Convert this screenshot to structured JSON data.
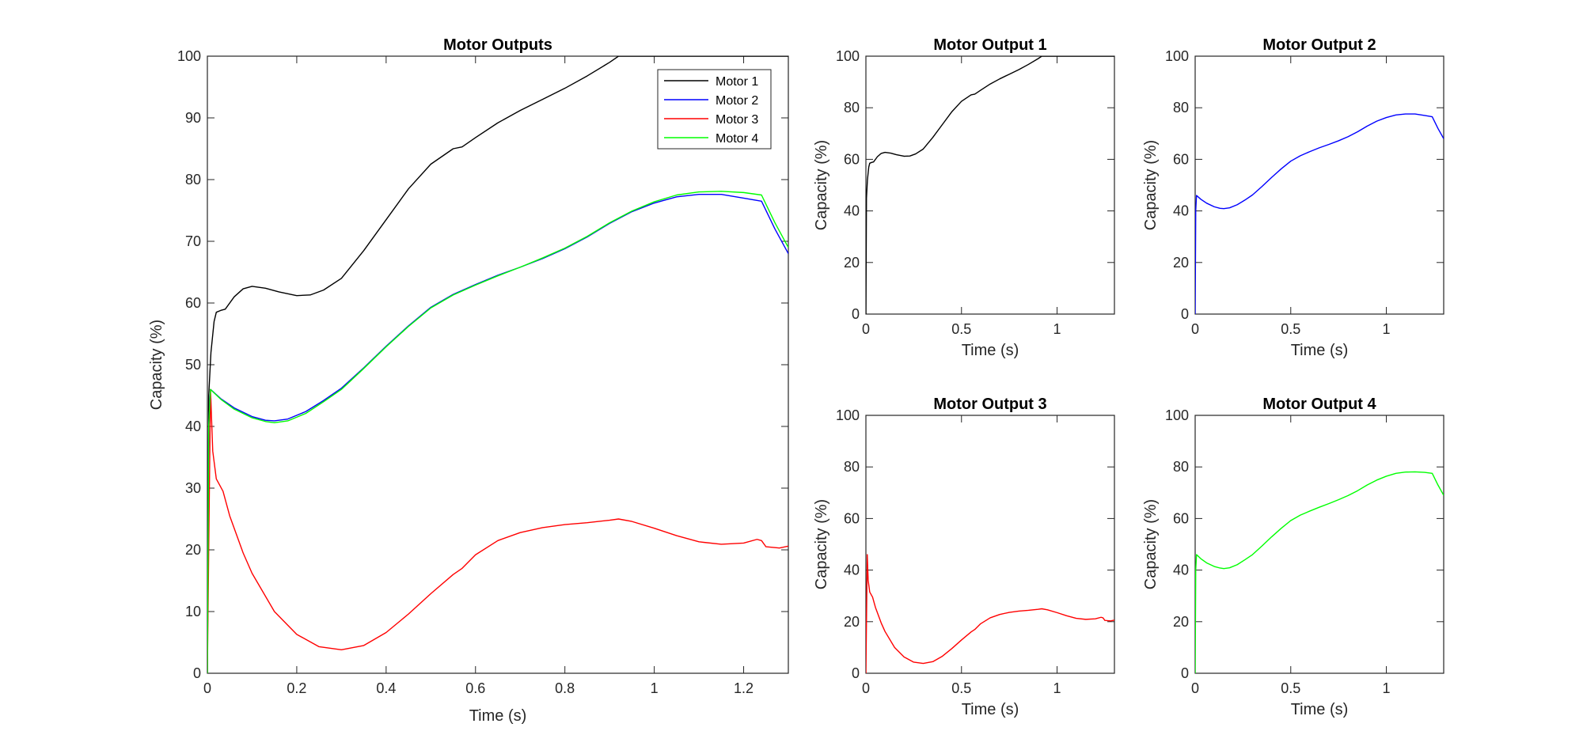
{
  "chart_data": [
    {
      "type": "line",
      "title": "Motor Outputs",
      "xlabel": "Time (s)",
      "ylabel": "Capacity (%)",
      "xlim": [
        0,
        1.3
      ],
      "ylim": [
        0,
        100
      ],
      "xticks": [
        0,
        0.2,
        0.4,
        0.6,
        0.8,
        1,
        1.2
      ],
      "xtick_labels": [
        "0",
        "0.2",
        "0.4",
        "0.6",
        "0.8",
        "1",
        "1.2"
      ],
      "yticks": [
        0,
        10,
        20,
        30,
        40,
        50,
        60,
        70,
        80,
        90,
        100
      ],
      "ytick_labels": [
        "0",
        "10",
        "20",
        "30",
        "40",
        "50",
        "60",
        "70",
        "80",
        "90",
        "100"
      ],
      "legend": "top-right",
      "grid": false,
      "series": [
        {
          "name": "Motor 1",
          "color": "#000000",
          "x": [
            0,
            0.003,
            0.008,
            0.015,
            0.02,
            0.03,
            0.04,
            0.06,
            0.08,
            0.1,
            0.13,
            0.16,
            0.2,
            0.23,
            0.26,
            0.3,
            0.35,
            0.4,
            0.45,
            0.5,
            0.55,
            0.57,
            0.6,
            0.65,
            0.7,
            0.75,
            0.8,
            0.85,
            0.9,
            0.92,
            1.0,
            1.1,
            1.2,
            1.3
          ],
          "y": [
            0,
            45,
            52,
            57,
            58.5,
            58.8,
            59,
            61,
            62.3,
            62.7,
            62.4,
            61.8,
            61.2,
            61.3,
            62.1,
            64,
            68.5,
            73.5,
            78.5,
            82.5,
            85,
            85.3,
            86.8,
            89.2,
            91.2,
            93,
            94.8,
            96.8,
            99,
            100,
            100,
            100,
            100,
            100
          ]
        },
        {
          "name": "Motor 2",
          "color": "#0000ff",
          "x": [
            0,
            0.003,
            0.007,
            0.03,
            0.06,
            0.1,
            0.13,
            0.15,
            0.18,
            0.22,
            0.26,
            0.3,
            0.35,
            0.4,
            0.45,
            0.5,
            0.55,
            0.6,
            0.65,
            0.7,
            0.75,
            0.8,
            0.85,
            0.9,
            0.95,
            1.0,
            1.05,
            1.1,
            1.15,
            1.2,
            1.24,
            1.27,
            1.3
          ],
          "y": [
            0,
            40,
            46,
            44.5,
            43,
            41.6,
            41,
            40.9,
            41.2,
            42.4,
            44.2,
            46.2,
            49.5,
            53,
            56.3,
            59.3,
            61.4,
            63,
            64.5,
            65.8,
            67.2,
            68.8,
            70.7,
            72.9,
            74.8,
            76.2,
            77.2,
            77.6,
            77.6,
            77,
            76.5,
            72,
            68
          ]
        },
        {
          "name": "Motor 3",
          "color": "#ff0000",
          "x": [
            0,
            0.003,
            0.007,
            0.012,
            0.02,
            0.035,
            0.05,
            0.08,
            0.1,
            0.15,
            0.2,
            0.25,
            0.3,
            0.35,
            0.4,
            0.45,
            0.5,
            0.55,
            0.57,
            0.6,
            0.65,
            0.7,
            0.75,
            0.8,
            0.85,
            0.9,
            0.92,
            0.95,
            1.0,
            1.05,
            1.1,
            1.15,
            1.2,
            1.23,
            1.24,
            1.25,
            1.28,
            1.3
          ],
          "y": [
            0,
            20,
            46,
            36,
            31.5,
            29.5,
            25.5,
            19.5,
            16.2,
            10,
            6.3,
            4.3,
            3.8,
            4.5,
            6.6,
            9.6,
            12.9,
            16,
            17,
            19.2,
            21.5,
            22.8,
            23.6,
            24.1,
            24.4,
            24.8,
            25,
            24.6,
            23.5,
            22.3,
            21.3,
            20.9,
            21.1,
            21.7,
            21.5,
            20.5,
            20.3,
            20.6
          ]
        },
        {
          "name": "Motor 4",
          "color": "#00ff00",
          "x": [
            0,
            0.003,
            0.007,
            0.03,
            0.06,
            0.1,
            0.13,
            0.15,
            0.18,
            0.22,
            0.26,
            0.3,
            0.35,
            0.4,
            0.45,
            0.5,
            0.55,
            0.6,
            0.65,
            0.7,
            0.75,
            0.8,
            0.85,
            0.9,
            0.95,
            1.0,
            1.05,
            1.1,
            1.15,
            1.2,
            1.24,
            1.27,
            1.3
          ],
          "y": [
            0,
            40,
            46,
            44.4,
            42.8,
            41.4,
            40.8,
            40.6,
            40.9,
            42.1,
            44,
            46,
            49.4,
            52.9,
            56.2,
            59.2,
            61.3,
            62.9,
            64.4,
            65.8,
            67.3,
            68.9,
            70.8,
            73,
            74.9,
            76.4,
            77.5,
            78,
            78.1,
            77.9,
            77.5,
            73,
            69
          ]
        }
      ]
    },
    {
      "type": "line",
      "title": "Motor Output 1",
      "xlabel": "Time (s)",
      "ylabel": "Capacity (%)",
      "xlim": [
        0,
        1.3
      ],
      "ylim": [
        0,
        100
      ],
      "xticks": [
        0,
        0.5,
        1
      ],
      "xtick_labels": [
        "0",
        "0.5",
        "1"
      ],
      "yticks": [
        0,
        20,
        40,
        60,
        80,
        100
      ],
      "ytick_labels": [
        "0",
        "20",
        "40",
        "60",
        "80",
        "100"
      ],
      "series_ref": "Motor 1"
    },
    {
      "type": "line",
      "title": "Motor Output 2",
      "xlabel": "Time (s)",
      "ylabel": "Capacity (%)",
      "xlim": [
        0,
        1.3
      ],
      "ylim": [
        0,
        100
      ],
      "xticks": [
        0,
        0.5,
        1
      ],
      "xtick_labels": [
        "0",
        "0.5",
        "1"
      ],
      "yticks": [
        0,
        20,
        40,
        60,
        80,
        100
      ],
      "ytick_labels": [
        "0",
        "20",
        "40",
        "60",
        "80",
        "100"
      ],
      "series_ref": "Motor 2"
    },
    {
      "type": "line",
      "title": "Motor Output 3",
      "xlabel": "Time (s)",
      "ylabel": "Capacity (%)",
      "xlim": [
        0,
        1.3
      ],
      "ylim": [
        0,
        100
      ],
      "xticks": [
        0,
        0.5,
        1
      ],
      "xtick_labels": [
        "0",
        "0.5",
        "1"
      ],
      "yticks": [
        0,
        20,
        40,
        60,
        80,
        100
      ],
      "ytick_labels": [
        "0",
        "20",
        "40",
        "60",
        "80",
        "100"
      ],
      "series_ref": "Motor 3"
    },
    {
      "type": "line",
      "title": "Motor Output 4",
      "xlabel": "Time (s)",
      "ylabel": "Capacity (%)",
      "xlim": [
        0,
        1.3
      ],
      "ylim": [
        0,
        100
      ],
      "xticks": [
        0,
        0.5,
        1
      ],
      "xtick_labels": [
        "0",
        "0.5",
        "1"
      ],
      "yticks": [
        0,
        20,
        40,
        60,
        80,
        100
      ],
      "ytick_labels": [
        "0",
        "20",
        "40",
        "60",
        "80",
        "100"
      ],
      "series_ref": "Motor 4"
    }
  ]
}
